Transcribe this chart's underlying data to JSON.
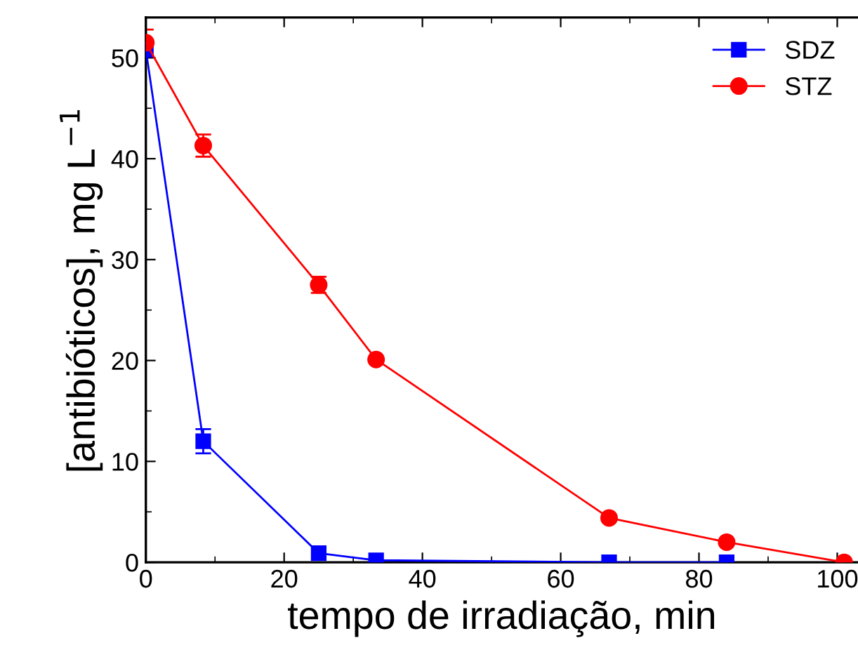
{
  "chart_data": {
    "type": "line",
    "xlabel": "tempo de irradiação, min",
    "ylabel": "[antibióticos], mg L$^{−1}$",
    "xlim": [
      0,
      103
    ],
    "ylim": [
      0,
      54
    ],
    "xticks": [
      0,
      20,
      40,
      60,
      80,
      100
    ],
    "yticks": [
      0,
      10,
      20,
      30,
      40,
      50
    ],
    "legend": "top right",
    "grid": false,
    "line_style": "solid",
    "series": [
      {
        "name": "SDZ",
        "color": "#0000ff",
        "marker": "square",
        "x": [
          0,
          8.3,
          25,
          33.3,
          67,
          84
        ],
        "values": [
          50.8,
          12.0,
          0.9,
          0.2,
          0,
          0
        ],
        "errors": [
          0.6,
          1.2,
          null,
          null,
          null,
          null
        ]
      },
      {
        "name": "STZ",
        "color": "#ff0000",
        "marker": "circle",
        "x": [
          0,
          8.3,
          25,
          33.3,
          67,
          84,
          101
        ],
        "values": [
          51.5,
          41.3,
          27.5,
          20.1,
          4.4,
          2.0,
          0
        ],
        "errors": [
          1.3,
          1.1,
          0.8,
          null,
          null,
          null,
          null
        ]
      }
    ]
  }
}
